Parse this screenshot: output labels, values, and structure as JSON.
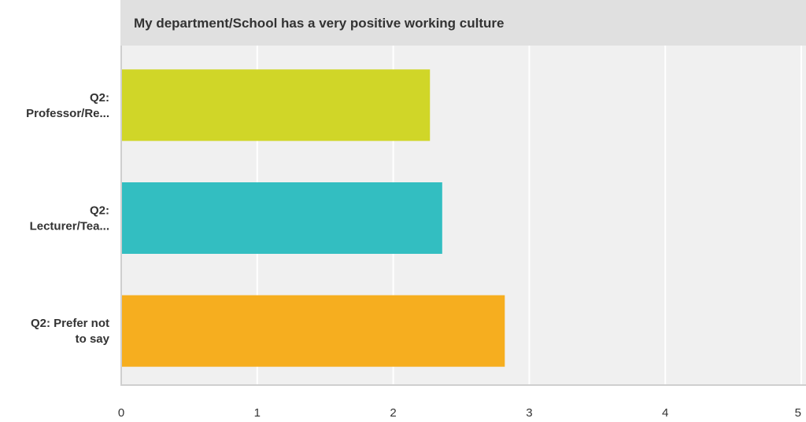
{
  "chart_data": {
    "type": "bar",
    "orientation": "horizontal",
    "title": "My department/School has a very positive working culture",
    "categories": [
      [
        "Q2:",
        "Professor/Re..."
      ],
      [
        "Q2:",
        "Lecturer/Tea..."
      ],
      [
        "Q2: Prefer not",
        "to say"
      ]
    ],
    "values": [
      2.27,
      2.36,
      2.82
    ],
    "colors": [
      "#d0d628",
      "#33bec1",
      "#f6ae1f"
    ],
    "xlim": [
      0,
      5
    ],
    "xticks": [
      "0",
      "1",
      "2",
      "3",
      "4",
      "5"
    ],
    "grid": true,
    "legend": "none"
  }
}
